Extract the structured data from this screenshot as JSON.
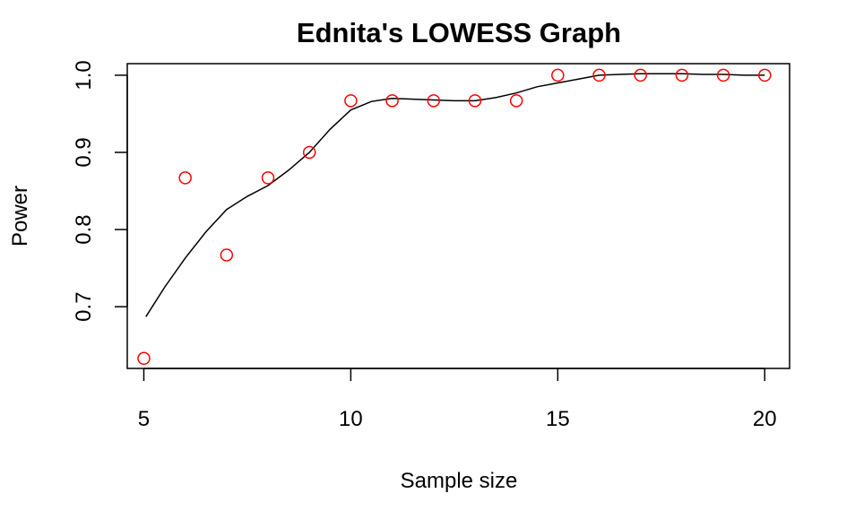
{
  "chart_data": {
    "type": "scatter",
    "title": "Ednita's LOWESS Graph",
    "xlabel": "Sample size",
    "ylabel": "Power",
    "xlim": [
      4.6,
      20.6
    ],
    "ylim": [
      0.62,
      1.015
    ],
    "x_ticks": [
      5,
      10,
      15,
      20
    ],
    "y_ticks": [
      0.7,
      0.8,
      0.9,
      1.0
    ],
    "x_tick_labels": [
      "5",
      "10",
      "15",
      "20"
    ],
    "y_tick_labels": [
      "0.7",
      "0.8",
      "0.9",
      "1.0"
    ],
    "grid": false,
    "points": {
      "color": "#ff0000",
      "x": [
        5,
        6,
        7,
        8,
        9,
        10,
        11,
        12,
        13,
        14,
        15,
        16,
        17,
        18,
        19,
        20
      ],
      "y": [
        0.633,
        0.867,
        0.767,
        0.867,
        0.9,
        0.967,
        0.967,
        0.967,
        0.967,
        0.967,
        1.0,
        1.0,
        1.0,
        1.0,
        1.0,
        1.0
      ]
    },
    "lowess_line": {
      "color": "#000000",
      "x": [
        5.05,
        5.5,
        6,
        6.5,
        7,
        7.5,
        8,
        8.5,
        9,
        9.5,
        10,
        10.5,
        11,
        11.5,
        12,
        12.5,
        13,
        13.5,
        14,
        14.5,
        15,
        15.5,
        16,
        16.5,
        17,
        17.5,
        18,
        18.5,
        19,
        19.5,
        20
      ],
      "y": [
        0.687,
        0.725,
        0.763,
        0.797,
        0.826,
        0.843,
        0.857,
        0.877,
        0.9,
        0.93,
        0.955,
        0.966,
        0.97,
        0.969,
        0.968,
        0.967,
        0.967,
        0.971,
        0.977,
        0.985,
        0.99,
        0.995,
        1.0,
        1.001,
        1.002,
        1.002,
        1.002,
        1.001,
        1.001,
        1.0,
        1.0
      ]
    }
  }
}
